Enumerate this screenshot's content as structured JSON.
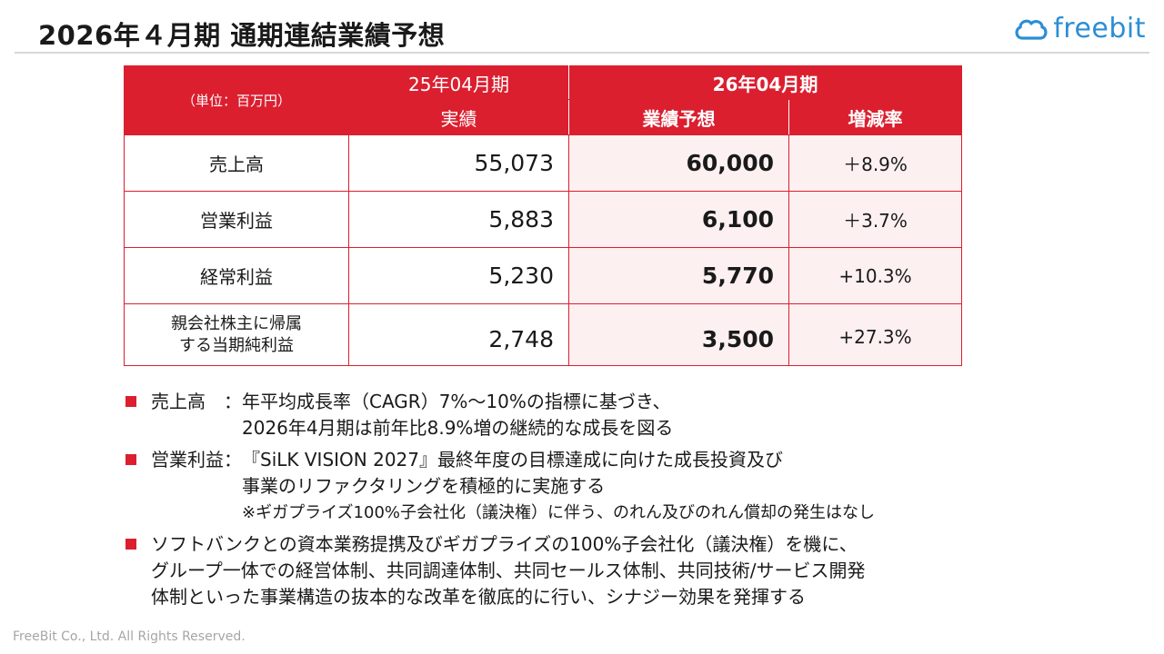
{
  "header": {
    "title": "2026年４月期 通期連結業績予想",
    "logo_text": "freebit",
    "logo_color": "#2b8ed6"
  },
  "table": {
    "unit_label": "（単位：百万円）",
    "prev_period": "25年04月期",
    "prev_sub": "実績",
    "cur_period": "26年04月期",
    "cur_sub_forecast": "業績予想",
    "cur_sub_rate": "増減率",
    "rows": [
      {
        "label": "売上高",
        "actual": "55,073",
        "forecast": "60,000",
        "rate": "＋8.9%"
      },
      {
        "label": "営業利益",
        "actual": "5,883",
        "forecast": "6,100",
        "rate": "＋3.7%"
      },
      {
        "label": "経常利益",
        "actual": "5,230",
        "forecast": "5,770",
        "rate": "+10.3%"
      },
      {
        "label_line1": "親会社株主に帰属",
        "label_line2": "する当期純利益",
        "actual": "2,748",
        "forecast": "3,500",
        "rate": "+27.3%"
      }
    ],
    "accent_color": "#db1f2f",
    "tint_color": "#fdf0f0"
  },
  "bullets": [
    {
      "label": "売上高　：",
      "line1": "年平均成長率（CAGR）7%～10%の指標に基づき、",
      "line2": "2026年4月期は前年比8.9%増の継続的な成長を図る"
    },
    {
      "label": "営業利益：",
      "line1": "『SiLK VISION 2027』最終年度の目標達成に向けた成長投資及び",
      "line2": "事業のリファクタリングを積極的に実施する",
      "note": "※ギガプライズ100%子会社化（議決権）に伴う、のれん及びのれん償却の発生はなし"
    },
    {
      "line1": "ソフトバンクとの資本業務提携及びギガプライズの100%子会社化（議決権）を機に、",
      "line2": "グループ一体での経営体制、共同調達体制、共同セールス体制、共同技術/サービス開発",
      "line3": "体制といった事業構造の抜本的な改革を徹底的に行い、シナジー効果を発揮する"
    }
  ],
  "footer": {
    "copyright": "FreeBit Co., Ltd. All Rights Reserved."
  }
}
